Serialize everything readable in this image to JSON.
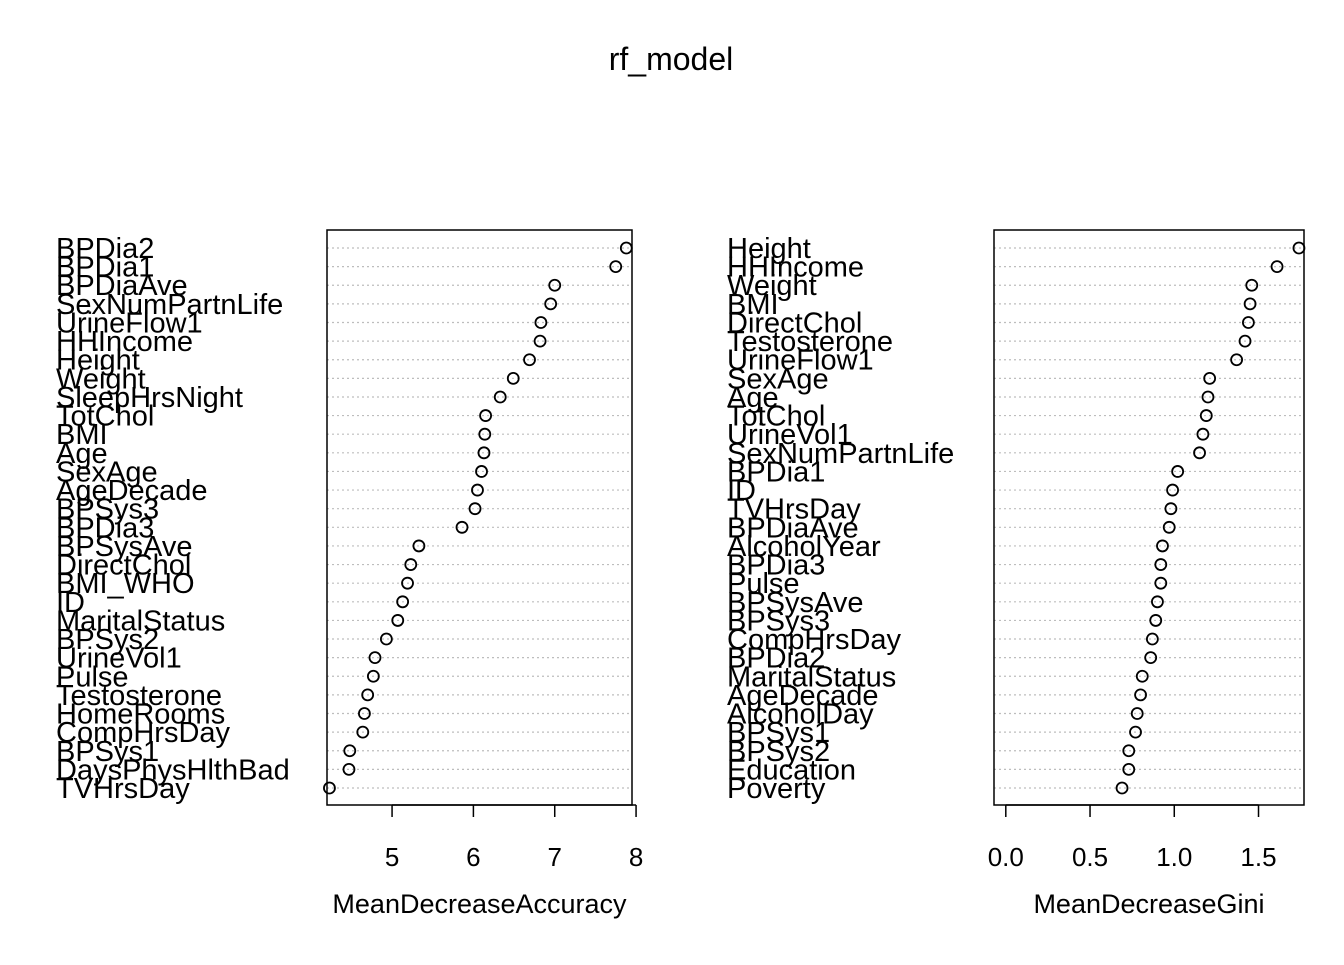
{
  "chart_data": {
    "type": "scatter",
    "title": "rf_model",
    "panels": [
      {
        "xlabel": "MeanDecreaseAccuracy",
        "xlim": [
          4.2,
          7.95
        ],
        "xticks": [
          "5",
          "6",
          "7",
          "8"
        ],
        "xtick_values": [
          5,
          6,
          7,
          8
        ],
        "grid": "dotted-horizontal",
        "categories": [
          "BPDia2",
          "BPDia1",
          "BPDiaAve",
          "SexNumPartnLife",
          "UrineFlow1",
          "HHIncome",
          "Height",
          "Weight",
          "SleepHrsNight",
          "TotChol",
          "BMI",
          "Age",
          "SexAge",
          "AgeDecade",
          "BPSys3",
          "BPDia3",
          "BPSysAve",
          "DirectChol",
          "BMI_WHO",
          "ID",
          "MaritalStatus",
          "BPSys2",
          "UrineVol1",
          "Pulse",
          "Testosterone",
          "HomeRooms",
          "CompHrsDay",
          "BPSys1",
          "DaysPhysHlthBad",
          "TVHrsDay"
        ],
        "values": [
          7.88,
          7.75,
          7.0,
          6.95,
          6.83,
          6.82,
          6.69,
          6.49,
          6.33,
          6.15,
          6.14,
          6.13,
          6.1,
          6.05,
          6.02,
          5.86,
          5.33,
          5.23,
          5.19,
          5.13,
          5.07,
          4.93,
          4.79,
          4.77,
          4.7,
          4.66,
          4.64,
          4.48,
          4.47,
          4.23
        ]
      },
      {
        "xlabel": "MeanDecreaseGini",
        "xlim": [
          -0.07,
          1.77
        ],
        "xticks": [
          "0.0",
          "0.5",
          "1.0",
          "1.5"
        ],
        "xtick_values": [
          0,
          0.5,
          1.0,
          1.5
        ],
        "grid": "dotted-horizontal",
        "categories": [
          "Height",
          "HHIncome",
          "Weight",
          "BMI",
          "DirectChol",
          "Testosterone",
          "UrineFlow1",
          "SexAge",
          "Age",
          "TotChol",
          "UrineVol1",
          "SexNumPartnLife",
          "BPDia1",
          "ID",
          "TVHrsDay",
          "BPDiaAve",
          "AlcoholYear",
          "BPDia3",
          "Pulse",
          "BPSysAve",
          "BPSys3",
          "CompHrsDay",
          "BPDia2",
          "MaritalStatus",
          "AgeDecade",
          "AlcoholDay",
          "BPSys1",
          "BPSys2",
          "Education",
          "Poverty"
        ],
        "values": [
          1.74,
          1.61,
          1.46,
          1.45,
          1.44,
          1.42,
          1.37,
          1.21,
          1.2,
          1.19,
          1.17,
          1.15,
          1.02,
          0.99,
          0.98,
          0.97,
          0.93,
          0.92,
          0.92,
          0.9,
          0.89,
          0.87,
          0.86,
          0.81,
          0.8,
          0.78,
          0.77,
          0.73,
          0.73,
          0.69
        ]
      }
    ]
  }
}
